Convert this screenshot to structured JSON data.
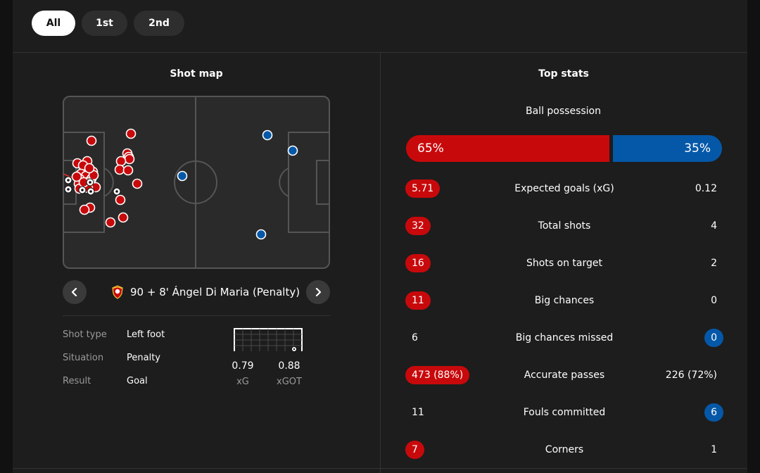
{
  "tabs": [
    "All",
    "1st",
    "2nd"
  ],
  "shot_map": {
    "title": "Shot map",
    "home_shot_count": 32,
    "away_shot_count": 4,
    "selected_shot": {
      "label": "90 + 8'  Ángel Di Maria (Penalty)",
      "details": [
        {
          "key": "Shot type",
          "value": "Left foot"
        },
        {
          "key": "Situation",
          "value": "Penalty"
        },
        {
          "key": "Result",
          "value": "Goal"
        }
      ],
      "xg": "0.79",
      "xg_label": "xG",
      "xgot": "0.88",
      "xgot_label": "xGOT"
    },
    "icons": {
      "prev": "chevron-left-icon",
      "next": "chevron-right-icon",
      "club": "club-crest-icon"
    }
  },
  "top_stats": {
    "title": "Top stats",
    "possession": {
      "label": "Ball possession",
      "home": "65%",
      "away": "35%",
      "home_value": 65,
      "away_value": 35
    },
    "rows": [
      {
        "name": "Expected goals (xG)",
        "home": "5.71",
        "away": "0.12",
        "highlight": "home"
      },
      {
        "name": "Total shots",
        "home": "32",
        "away": "4",
        "highlight": "home"
      },
      {
        "name": "Shots on target",
        "home": "16",
        "away": "2",
        "highlight": "home"
      },
      {
        "name": "Big chances",
        "home": "11",
        "away": "0",
        "highlight": "home"
      },
      {
        "name": "Big chances missed",
        "home": "6",
        "away": "0",
        "highlight": "away"
      },
      {
        "name": "Accurate passes",
        "home": "473 (88%)",
        "away": "226 (72%)",
        "highlight": "home"
      },
      {
        "name": "Fouls committed",
        "home": "11",
        "away": "6",
        "highlight": "away"
      },
      {
        "name": "Corners",
        "home": "7",
        "away": "1",
        "highlight": "home"
      }
    ]
  },
  "colors": {
    "home": "#c8090b",
    "away": "#0558a8",
    "background": "#1d1d1d"
  }
}
